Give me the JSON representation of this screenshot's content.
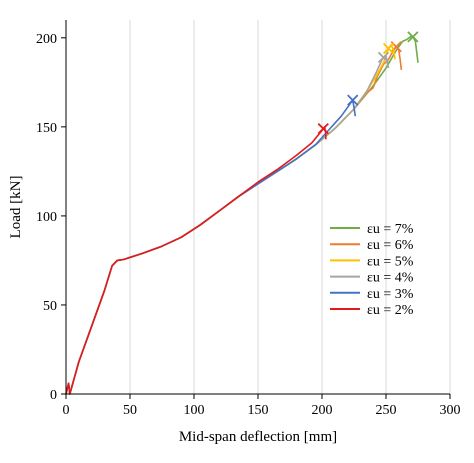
{
  "chart_data": {
    "type": "line",
    "xlabel": "Mid-span deflection [mm]",
    "ylabel": "Load [kN]",
    "xlim": [
      0,
      300
    ],
    "ylim": [
      0,
      210
    ],
    "xticks": [
      0,
      50,
      100,
      150,
      200,
      250,
      300
    ],
    "yticks": [
      0,
      50,
      100,
      150,
      200
    ],
    "x_grid": true,
    "y_grid": false,
    "legend_position": "right",
    "series": [
      {
        "name": "εu = 7%",
        "color": "#70AD47",
        "points": [
          [
            0,
            0
          ],
          [
            2,
            6
          ],
          [
            3,
            0
          ],
          [
            10,
            18
          ],
          [
            20,
            38
          ],
          [
            30,
            58
          ],
          [
            36,
            72
          ],
          [
            40,
            75
          ],
          [
            45,
            75.5
          ],
          [
            60,
            79
          ],
          [
            75,
            83
          ],
          [
            90,
            88
          ],
          [
            105,
            95
          ],
          [
            120,
            103
          ],
          [
            135,
            111
          ],
          [
            150,
            118
          ],
          [
            165,
            125
          ],
          [
            180,
            132
          ],
          [
            195,
            140
          ],
          [
            210,
            149
          ],
          [
            225,
            160
          ],
          [
            240,
            173
          ],
          [
            250,
            183
          ],
          [
            258,
            193
          ],
          [
            263,
            198
          ],
          [
            266,
            199
          ],
          [
            268,
            200
          ],
          [
            270,
            201
          ],
          [
            271,
            200.5
          ],
          [
            273,
            198
          ],
          [
            274,
            192
          ],
          [
            275,
            186
          ]
        ],
        "marker": [
          271,
          200.5
        ]
      },
      {
        "name": "εu = 6%",
        "color": "#ED7D31",
        "points": [
          [
            0,
            0
          ],
          [
            2,
            6
          ],
          [
            3,
            0
          ],
          [
            10,
            18
          ],
          [
            20,
            38
          ],
          [
            30,
            58
          ],
          [
            36,
            72
          ],
          [
            40,
            75
          ],
          [
            45,
            75.5
          ],
          [
            60,
            79
          ],
          [
            75,
            83
          ],
          [
            90,
            88
          ],
          [
            105,
            95
          ],
          [
            120,
            103
          ],
          [
            135,
            111
          ],
          [
            150,
            118
          ],
          [
            165,
            125
          ],
          [
            180,
            132
          ],
          [
            195,
            140
          ],
          [
            210,
            149
          ],
          [
            225,
            160
          ],
          [
            235,
            169
          ],
          [
            240,
            172
          ],
          [
            243,
            178
          ],
          [
            248,
            185
          ],
          [
            252,
            188
          ],
          [
            255,
            192
          ],
          [
            258,
            195
          ],
          [
            260,
            193
          ],
          [
            261,
            188
          ],
          [
            262,
            182
          ]
        ],
        "marker": [
          258,
          195
        ]
      },
      {
        "name": "εu = 5%",
        "color": "#FFC000",
        "points": [
          [
            0,
            0
          ],
          [
            2,
            6
          ],
          [
            3,
            0
          ],
          [
            10,
            18
          ],
          [
            20,
            38
          ],
          [
            30,
            58
          ],
          [
            36,
            72
          ],
          [
            40,
            75
          ],
          [
            45,
            75.5
          ],
          [
            60,
            79
          ],
          [
            75,
            83
          ],
          [
            90,
            88
          ],
          [
            105,
            95
          ],
          [
            120,
            103
          ],
          [
            135,
            111
          ],
          [
            150,
            118
          ],
          [
            165,
            125
          ],
          [
            180,
            132
          ],
          [
            195,
            140
          ],
          [
            210,
            149
          ],
          [
            225,
            160
          ],
          [
            235,
            170
          ],
          [
            242,
            178
          ],
          [
            248,
            186
          ],
          [
            252,
            194
          ],
          [
            254,
            196
          ],
          [
            256,
            193
          ],
          [
            257,
            188
          ]
        ],
        "marker": [
          252,
          194
        ]
      },
      {
        "name": "εu = 4%",
        "color": "#A5A5A5",
        "points": [
          [
            0,
            0
          ],
          [
            2,
            6
          ],
          [
            3,
            0
          ],
          [
            10,
            18
          ],
          [
            20,
            38
          ],
          [
            30,
            58
          ],
          [
            36,
            72
          ],
          [
            40,
            75
          ],
          [
            45,
            75.5
          ],
          [
            60,
            79
          ],
          [
            75,
            83
          ],
          [
            90,
            88
          ],
          [
            105,
            95
          ],
          [
            120,
            103
          ],
          [
            135,
            111
          ],
          [
            150,
            118
          ],
          [
            165,
            125
          ],
          [
            180,
            132
          ],
          [
            195,
            140
          ],
          [
            210,
            149
          ],
          [
            225,
            160
          ],
          [
            235,
            170
          ],
          [
            242,
            180
          ],
          [
            247,
            188
          ],
          [
            250,
            190
          ],
          [
            251,
            186
          ],
          [
            252,
            183
          ]
        ],
        "marker": [
          248,
          189
        ]
      },
      {
        "name": "εu = 3%",
        "color": "#4472C4",
        "points": [
          [
            0,
            0
          ],
          [
            2,
            6
          ],
          [
            3,
            0
          ],
          [
            10,
            18
          ],
          [
            20,
            38
          ],
          [
            30,
            58
          ],
          [
            36,
            72
          ],
          [
            40,
            75
          ],
          [
            45,
            75.5
          ],
          [
            60,
            79
          ],
          [
            75,
            83
          ],
          [
            90,
            88
          ],
          [
            105,
            95
          ],
          [
            120,
            103
          ],
          [
            135,
            111
          ],
          [
            150,
            118
          ],
          [
            165,
            125
          ],
          [
            180,
            132
          ],
          [
            195,
            140
          ],
          [
            205,
            148
          ],
          [
            215,
            156
          ],
          [
            222,
            163
          ],
          [
            224,
            165
          ],
          [
            225,
            161
          ],
          [
            226,
            156
          ]
        ],
        "marker": [
          224,
          165
        ]
      },
      {
        "name": "εu = 2%",
        "color": "#E31A1C",
        "points": [
          [
            0,
            0
          ],
          [
            2,
            6
          ],
          [
            3,
            0
          ],
          [
            10,
            18
          ],
          [
            20,
            38
          ],
          [
            30,
            58
          ],
          [
            36,
            72
          ],
          [
            40,
            75
          ],
          [
            45,
            75.5
          ],
          [
            60,
            79
          ],
          [
            75,
            83
          ],
          [
            90,
            88
          ],
          [
            105,
            95
          ],
          [
            120,
            103
          ],
          [
            135,
            111
          ],
          [
            150,
            119
          ],
          [
            165,
            126
          ],
          [
            180,
            134
          ],
          [
            192,
            141
          ],
          [
            200,
            148
          ],
          [
            202,
            150
          ],
          [
            203,
            146
          ],
          [
            203,
            143
          ]
        ],
        "marker": [
          201,
          149
        ]
      }
    ]
  }
}
